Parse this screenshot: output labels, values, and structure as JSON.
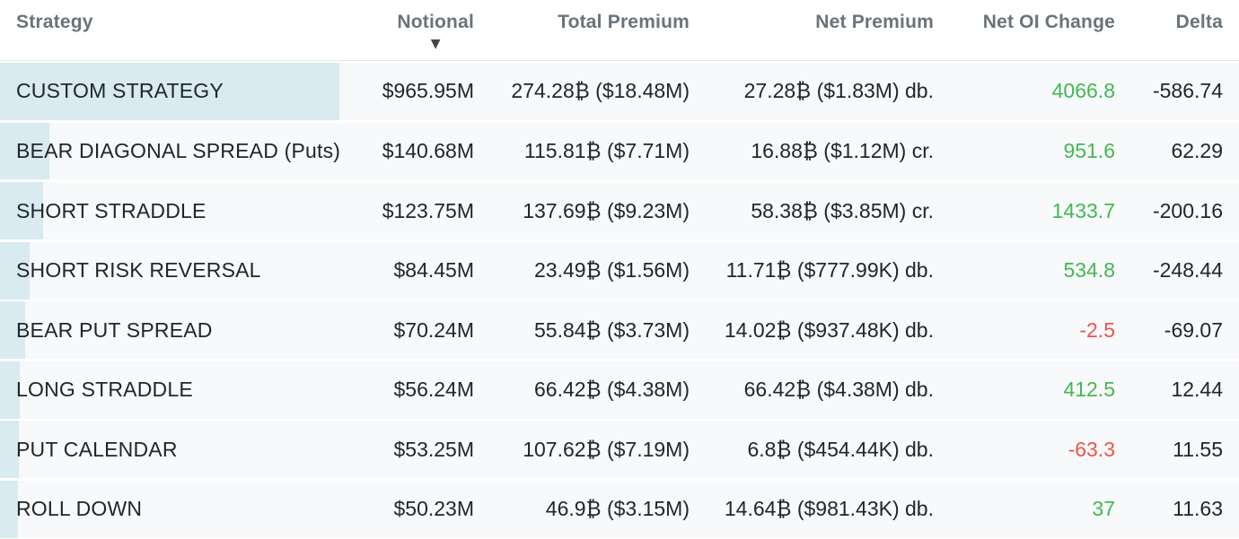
{
  "table": {
    "sort_indicator": "▼",
    "columns": [
      {
        "key": "strategy",
        "label": "Strategy",
        "align": "left"
      },
      {
        "key": "notional",
        "label": "Notional",
        "align": "right",
        "sorted": "desc"
      },
      {
        "key": "total_premium",
        "label": "Total Premium",
        "align": "right"
      },
      {
        "key": "net_premium",
        "label": "Net Premium",
        "align": "right"
      },
      {
        "key": "net_oi_change",
        "label": "Net OI Change",
        "align": "right"
      },
      {
        "key": "delta",
        "label": "Delta",
        "align": "right"
      }
    ],
    "rows": [
      {
        "strategy": "CUSTOM STRATEGY",
        "notional": "$965.95M",
        "notional_m": 965.95,
        "total_premium": "274.28₿ ($18.48M)",
        "net_premium": "27.28₿ ($1.83M) db.",
        "net_oi_change": "4066.8",
        "delta": "-586.74"
      },
      {
        "strategy": "BEAR DIAGONAL SPREAD (Puts)",
        "notional": "$140.68M",
        "notional_m": 140.68,
        "total_premium": "115.81₿ ($7.71M)",
        "net_premium": "16.88₿ ($1.12M) cr.",
        "net_oi_change": "951.6",
        "delta": "62.29"
      },
      {
        "strategy": "SHORT STRADDLE",
        "notional": "$123.75M",
        "notional_m": 123.75,
        "total_premium": "137.69₿ ($9.23M)",
        "net_premium": "58.38₿ ($3.85M) cr.",
        "net_oi_change": "1433.7",
        "delta": "-200.16"
      },
      {
        "strategy": "SHORT RISK REVERSAL",
        "notional": "$84.45M",
        "notional_m": 84.45,
        "total_premium": "23.49₿ ($1.56M)",
        "net_premium": "11.71₿ ($777.99K) db.",
        "net_oi_change": "534.8",
        "delta": "-248.44"
      },
      {
        "strategy": "BEAR PUT SPREAD",
        "notional": "$70.24M",
        "notional_m": 70.24,
        "total_premium": "55.84₿ ($3.73M)",
        "net_premium": "14.02₿ ($937.48K) db.",
        "net_oi_change": "-2.5",
        "delta": "-69.07"
      },
      {
        "strategy": "LONG STRADDLE",
        "notional": "$56.24M",
        "notional_m": 56.24,
        "total_premium": "66.42₿ ($4.38M)",
        "net_premium": "66.42₿ ($4.38M) db.",
        "net_oi_change": "412.5",
        "delta": "12.44"
      },
      {
        "strategy": "PUT CALENDAR",
        "notional": "$53.25M",
        "notional_m": 53.25,
        "total_premium": "107.62₿ ($7.19M)",
        "net_premium": "6.8₿ ($454.44K) db.",
        "net_oi_change": "-63.3",
        "delta": "11.55"
      },
      {
        "strategy": "ROLL DOWN",
        "notional": "$50.23M",
        "notional_m": 50.23,
        "total_premium": "46.9₿ ($3.15M)",
        "net_premium": "14.64₿ ($981.43K) db.",
        "net_oi_change": "37",
        "delta": "11.63"
      }
    ]
  },
  "colors": {
    "positive": "#43b854",
    "negative": "#ee544a",
    "bar": "#d9eaf1",
    "row_bg": "#f7f9fa",
    "header_text": "#6a737b",
    "body_text": "#21262b",
    "header_border": "#e3e6e9"
  }
}
